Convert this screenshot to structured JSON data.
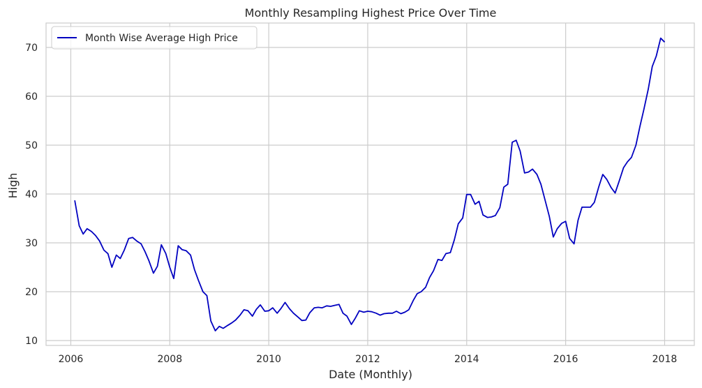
{
  "chart_data": {
    "type": "line",
    "title": "Monthly Resampling Highest Price Over Time",
    "xlabel": "Date (Monthly)",
    "ylabel": "High",
    "xlim": [
      2005.5,
      2018.6
    ],
    "ylim": [
      9,
      75
    ],
    "x_ticks": [
      2006,
      2008,
      2010,
      2012,
      2014,
      2016,
      2018
    ],
    "x_tick_labels": [
      "2006",
      "2008",
      "2010",
      "2012",
      "2014",
      "2016",
      "2018"
    ],
    "y_ticks": [
      10,
      20,
      30,
      40,
      50,
      60,
      70
    ],
    "y_tick_labels": [
      "10",
      "20",
      "30",
      "40",
      "50",
      "60",
      "70"
    ],
    "grid": true,
    "legend_position": "top-left",
    "colors": {
      "line": "#0000c0",
      "grid": "#cccccc",
      "frame": "#cccccc",
      "text": "#262626"
    },
    "series": [
      {
        "name": "Month Wise Average High Price",
        "points": [
          [
            2006.08,
            38.7
          ],
          [
            2006.17,
            33.5
          ],
          [
            2006.25,
            31.8
          ],
          [
            2006.33,
            32.9
          ],
          [
            2006.42,
            32.3
          ],
          [
            2006.5,
            31.5
          ],
          [
            2006.58,
            30.4
          ],
          [
            2006.67,
            28.5
          ],
          [
            2006.75,
            27.8
          ],
          [
            2006.83,
            25.0
          ],
          [
            2006.92,
            27.5
          ],
          [
            2007.0,
            26.8
          ],
          [
            2007.08,
            28.5
          ],
          [
            2007.17,
            30.9
          ],
          [
            2007.25,
            31.1
          ],
          [
            2007.33,
            30.4
          ],
          [
            2007.42,
            29.8
          ],
          [
            2007.5,
            28.2
          ],
          [
            2007.58,
            26.3
          ],
          [
            2007.67,
            23.8
          ],
          [
            2007.75,
            25.2
          ],
          [
            2007.83,
            29.6
          ],
          [
            2007.92,
            27.8
          ],
          [
            2008.0,
            25.0
          ],
          [
            2008.08,
            22.7
          ],
          [
            2008.17,
            29.4
          ],
          [
            2008.25,
            28.6
          ],
          [
            2008.33,
            28.4
          ],
          [
            2008.42,
            27.5
          ],
          [
            2008.5,
            24.5
          ],
          [
            2008.58,
            22.3
          ],
          [
            2008.67,
            20.0
          ],
          [
            2008.75,
            19.2
          ],
          [
            2008.83,
            14.0
          ],
          [
            2008.92,
            12.0
          ],
          [
            2009.0,
            12.9
          ],
          [
            2009.08,
            12.5
          ],
          [
            2009.17,
            13.1
          ],
          [
            2009.25,
            13.6
          ],
          [
            2009.33,
            14.2
          ],
          [
            2009.42,
            15.2
          ],
          [
            2009.5,
            16.3
          ],
          [
            2009.58,
            16.1
          ],
          [
            2009.67,
            15.0
          ],
          [
            2009.75,
            16.4
          ],
          [
            2009.83,
            17.3
          ],
          [
            2009.92,
            16.0
          ],
          [
            2010.0,
            16.1
          ],
          [
            2010.08,
            16.7
          ],
          [
            2010.17,
            15.6
          ],
          [
            2010.25,
            16.6
          ],
          [
            2010.33,
            17.8
          ],
          [
            2010.42,
            16.5
          ],
          [
            2010.5,
            15.6
          ],
          [
            2010.58,
            14.9
          ],
          [
            2010.67,
            14.1
          ],
          [
            2010.75,
            14.2
          ],
          [
            2010.83,
            15.7
          ],
          [
            2010.92,
            16.7
          ],
          [
            2011.0,
            16.8
          ],
          [
            2011.08,
            16.7
          ],
          [
            2011.17,
            17.1
          ],
          [
            2011.25,
            17.0
          ],
          [
            2011.33,
            17.2
          ],
          [
            2011.42,
            17.4
          ],
          [
            2011.5,
            15.6
          ],
          [
            2011.58,
            15.0
          ],
          [
            2011.67,
            13.3
          ],
          [
            2011.75,
            14.6
          ],
          [
            2011.83,
            16.1
          ],
          [
            2011.92,
            15.8
          ],
          [
            2012.0,
            16.0
          ],
          [
            2012.08,
            15.9
          ],
          [
            2012.17,
            15.6
          ],
          [
            2012.25,
            15.2
          ],
          [
            2012.33,
            15.5
          ],
          [
            2012.42,
            15.6
          ],
          [
            2012.5,
            15.6
          ],
          [
            2012.58,
            16.0
          ],
          [
            2012.67,
            15.5
          ],
          [
            2012.75,
            15.8
          ],
          [
            2012.83,
            16.3
          ],
          [
            2012.92,
            18.2
          ],
          [
            2013.0,
            19.6
          ],
          [
            2013.08,
            20.0
          ],
          [
            2013.17,
            20.9
          ],
          [
            2013.25,
            22.9
          ],
          [
            2013.33,
            24.3
          ],
          [
            2013.42,
            26.6
          ],
          [
            2013.5,
            26.4
          ],
          [
            2013.58,
            27.8
          ],
          [
            2013.67,
            28.0
          ],
          [
            2013.75,
            30.6
          ],
          [
            2013.83,
            33.9
          ],
          [
            2013.92,
            35.1
          ],
          [
            2014.0,
            39.9
          ],
          [
            2014.08,
            39.9
          ],
          [
            2014.17,
            37.9
          ],
          [
            2014.25,
            38.5
          ],
          [
            2014.33,
            35.7
          ],
          [
            2014.42,
            35.2
          ],
          [
            2014.5,
            35.3
          ],
          [
            2014.58,
            35.6
          ],
          [
            2014.67,
            37.2
          ],
          [
            2014.75,
            41.4
          ],
          [
            2014.83,
            42.0
          ],
          [
            2014.92,
            50.6
          ],
          [
            2015.0,
            51.0
          ],
          [
            2015.08,
            48.8
          ],
          [
            2015.17,
            44.3
          ],
          [
            2015.25,
            44.5
          ],
          [
            2015.33,
            45.1
          ],
          [
            2015.42,
            44.0
          ],
          [
            2015.5,
            42.0
          ],
          [
            2015.58,
            38.9
          ],
          [
            2015.67,
            35.4
          ],
          [
            2015.75,
            31.2
          ],
          [
            2015.83,
            32.9
          ],
          [
            2015.92,
            34.0
          ],
          [
            2016.0,
            34.4
          ],
          [
            2016.08,
            30.9
          ],
          [
            2016.17,
            29.8
          ],
          [
            2016.25,
            34.6
          ],
          [
            2016.33,
            37.3
          ],
          [
            2016.42,
            37.3
          ],
          [
            2016.5,
            37.3
          ],
          [
            2016.58,
            38.3
          ],
          [
            2016.67,
            41.5
          ],
          [
            2016.75,
            44.0
          ],
          [
            2016.83,
            43.0
          ],
          [
            2016.92,
            41.3
          ],
          [
            2017.0,
            40.2
          ],
          [
            2017.08,
            42.6
          ],
          [
            2017.17,
            45.4
          ],
          [
            2017.25,
            46.6
          ],
          [
            2017.33,
            47.5
          ],
          [
            2017.42,
            50.0
          ],
          [
            2017.5,
            53.8
          ],
          [
            2017.58,
            57.3
          ],
          [
            2017.67,
            61.5
          ],
          [
            2017.75,
            66.1
          ],
          [
            2017.83,
            68.2
          ],
          [
            2017.92,
            71.9
          ],
          [
            2018.0,
            71.1
          ]
        ]
      }
    ]
  }
}
